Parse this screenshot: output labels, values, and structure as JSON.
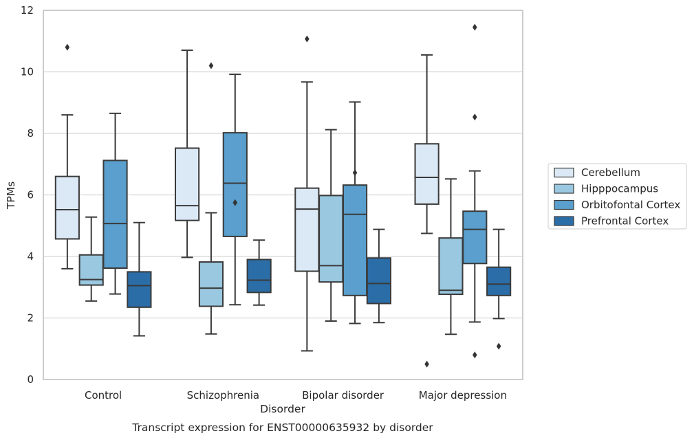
{
  "chart_data": {
    "type": "box",
    "xlabel": "Disorder",
    "ylabel": "TPMs",
    "caption": "Transcript expression for ENST00000635932 by disorder",
    "ylim": [
      0,
      12
    ],
    "yticks": [
      0,
      2,
      4,
      6,
      8,
      10,
      12
    ],
    "grid": "horizontal",
    "legend_position": "right",
    "categories": [
      "Control",
      "Schizophrenia",
      "Bipolar disorder",
      "Major depression"
    ],
    "series": [
      {
        "name": "Cerebellum",
        "color": "#dbe9f6",
        "boxes": [
          {
            "whislo": 3.6,
            "q1": 4.57,
            "med": 5.52,
            "q3": 6.6,
            "whishi": 8.6,
            "fliers": [
              10.8
            ]
          },
          {
            "whislo": 3.97,
            "q1": 5.17,
            "med": 5.65,
            "q3": 7.52,
            "whishi": 10.7,
            "fliers": []
          },
          {
            "whislo": 0.93,
            "q1": 3.52,
            "med": 5.54,
            "q3": 6.22,
            "whishi": 9.67,
            "fliers": [
              11.07
            ]
          },
          {
            "whislo": 4.75,
            "q1": 5.7,
            "med": 6.57,
            "q3": 7.66,
            "whishi": 10.55,
            "fliers": [
              0.5
            ]
          }
        ]
      },
      {
        "name": "Hipppocampus",
        "color": "#9ac8e0",
        "boxes": [
          {
            "whislo": 2.55,
            "q1": 3.07,
            "med": 3.25,
            "q3": 4.05,
            "whishi": 5.28,
            "fliers": []
          },
          {
            "whislo": 1.48,
            "q1": 2.38,
            "med": 2.97,
            "q3": 3.82,
            "whishi": 5.42,
            "fliers": [
              10.2
            ]
          },
          {
            "whislo": 1.9,
            "q1": 3.17,
            "med": 3.7,
            "q3": 5.98,
            "whishi": 8.12,
            "fliers": []
          },
          {
            "whislo": 1.47,
            "q1": 2.77,
            "med": 2.9,
            "q3": 4.6,
            "whishi": 6.52,
            "fliers": []
          }
        ]
      },
      {
        "name": "Orbitofontal Cortex",
        "color": "#5a9fcd",
        "boxes": [
          {
            "whislo": 2.78,
            "q1": 3.62,
            "med": 5.07,
            "q3": 7.12,
            "whishi": 8.65,
            "fliers": []
          },
          {
            "whislo": 2.43,
            "q1": 4.65,
            "med": 6.38,
            "q3": 8.02,
            "whishi": 9.92,
            "fliers": [
              5.75
            ]
          },
          {
            "whislo": 1.82,
            "q1": 2.73,
            "med": 5.37,
            "q3": 6.32,
            "whishi": 9.02,
            "fliers": [
              6.72
            ]
          },
          {
            "whislo": 1.87,
            "q1": 3.77,
            "med": 4.88,
            "q3": 5.47,
            "whishi": 6.78,
            "fliers": [
              8.53,
              11.45,
              0.8
            ]
          }
        ]
      },
      {
        "name": "Prefrontal Cortex",
        "color": "#2b6da7",
        "boxes": [
          {
            "whislo": 1.42,
            "q1": 2.35,
            "med": 3.05,
            "q3": 3.5,
            "whishi": 5.1,
            "fliers": []
          },
          {
            "whislo": 2.42,
            "q1": 2.83,
            "med": 3.23,
            "q3": 3.9,
            "whishi": 4.53,
            "fliers": []
          },
          {
            "whislo": 1.85,
            "q1": 2.47,
            "med": 3.12,
            "q3": 3.95,
            "whishi": 4.88,
            "fliers": []
          },
          {
            "whislo": 1.98,
            "q1": 2.73,
            "med": 3.1,
            "q3": 3.65,
            "whishi": 4.88,
            "fliers": [
              1.08
            ]
          }
        ]
      }
    ]
  }
}
